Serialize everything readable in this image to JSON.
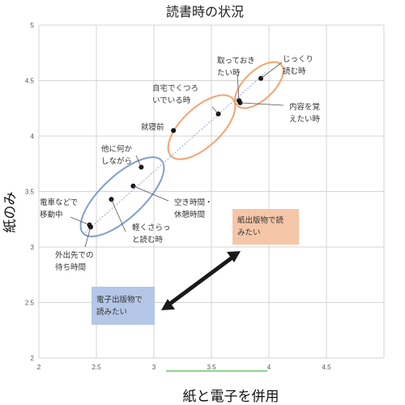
{
  "chart_data": {
    "type": "scatter",
    "title": "読書時の状況",
    "xlabel": "紙と電子を併用",
    "ylabel": "紙のみ",
    "xlim": [
      2,
      5
    ],
    "ylim": [
      2,
      5
    ],
    "xticks": [
      "2",
      "2.5",
      "3",
      "3.5",
      "4",
      "4.5"
    ],
    "yticks": [
      "2",
      "2.5",
      "3",
      "3.5",
      "4",
      "4.5",
      "5"
    ],
    "grid": true,
    "points": [
      {
        "label": [
          "電車などで",
          "移動中"
        ],
        "x": 2.44,
        "y": 3.2
      },
      {
        "label": [
          "外出先での",
          "待ち時間"
        ],
        "x": 2.45,
        "y": 3.18
      },
      {
        "label": [
          "軽くさらっ",
          "と読む時"
        ],
        "x": 2.63,
        "y": 3.43
      },
      {
        "label": [
          "空き時間・",
          "休憩時間"
        ],
        "x": 2.82,
        "y": 3.55
      },
      {
        "label": [
          "他に何か",
          "しながら"
        ],
        "x": 2.89,
        "y": 3.72
      },
      {
        "label": [
          "就寝前"
        ],
        "x": 3.17,
        "y": 4.05
      },
      {
        "label": [
          "自宅でくつろ",
          "いでいる時"
        ],
        "x": 3.56,
        "y": 4.2
      },
      {
        "label": [
          "取っておき",
          "たい時"
        ],
        "x": 3.74,
        "y": 4.32
      },
      {
        "label": [
          "内容を覚",
          "えたい時"
        ],
        "x": 3.75,
        "y": 4.3
      },
      {
        "label": [
          "じっくり",
          "読む時"
        ],
        "x": 3.93,
        "y": 4.52
      }
    ],
    "trendline": {
      "style": "dotted",
      "from": [
        2.4,
        3.13
      ],
      "to": [
        3.98,
        4.58
      ]
    },
    "annotations": {
      "paper_box": "紙出版物で読みたい",
      "paper_box_lines": [
        "紙出版物で読",
        "みたい"
      ],
      "paper_color": "#f5c6a8",
      "digital_box": "電子出版物で読みたい",
      "digital_box_lines": [
        "電子出版物で",
        "読みたい"
      ],
      "digital_color": "#b4c7e7",
      "orange_ellipse_color": "#f4a46f",
      "blue_ellipse_color": "#7f9fcf",
      "highlight_color": "#6cc46c"
    }
  }
}
